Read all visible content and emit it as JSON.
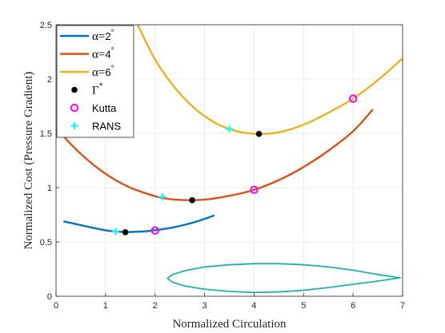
{
  "chart_data": {
    "type": "line",
    "xlabel": "Normalized Circulation",
    "ylabel": "Normalized Cost (Pressure Gradient)",
    "xlim": [
      0,
      7
    ],
    "ylim": [
      0,
      2.5
    ],
    "xticks": [
      "0",
      "1",
      "2",
      "3",
      "4",
      "5",
      "6",
      "7"
    ],
    "yticks": [
      "0",
      "0.5",
      "1",
      "1.5",
      "2",
      "2.5"
    ],
    "grid": true,
    "legend_position": "top-left",
    "series": [
      {
        "name_prefix": "α=",
        "name_value": "2",
        "name_suffix": "°",
        "color": "#0072BD",
        "x": [
          0.15,
          0.4,
          0.7,
          1.0,
          1.2,
          1.4,
          1.6,
          1.8,
          2.0,
          2.3,
          2.6,
          2.9,
          3.2
        ],
        "y": [
          0.69,
          0.665,
          0.635,
          0.607,
          0.597,
          0.592,
          0.593,
          0.598,
          0.608,
          0.628,
          0.658,
          0.697,
          0.745
        ]
      },
      {
        "name_prefix": "α=",
        "name_value": "4",
        "name_suffix": "°",
        "color": "#D95319",
        "x": [
          0.0,
          0.3,
          0.6,
          0.9,
          1.2,
          1.5,
          1.8,
          2.1,
          2.4,
          2.75,
          3.1,
          3.5,
          4.0,
          4.5,
          5.0,
          5.5,
          6.0,
          6.4
        ],
        "y": [
          1.55,
          1.4,
          1.27,
          1.16,
          1.07,
          1.0,
          0.95,
          0.91,
          0.89,
          0.885,
          0.895,
          0.925,
          0.98,
          1.07,
          1.19,
          1.34,
          1.52,
          1.72
        ]
      },
      {
        "name_prefix": "α=",
        "name_value": "6",
        "name_suffix": "°",
        "color": "#EDB120",
        "x": [
          1.65,
          2.0,
          2.4,
          2.8,
          3.2,
          3.5,
          3.8,
          4.1,
          4.5,
          5.0,
          5.5,
          6.0,
          6.5,
          7.0
        ],
        "y": [
          2.5,
          2.18,
          1.92,
          1.73,
          1.6,
          1.54,
          1.505,
          1.495,
          1.51,
          1.58,
          1.69,
          1.82,
          1.99,
          2.19
        ]
      }
    ],
    "markers": {
      "gamma_star": {
        "label_symbol": "Γ",
        "label_sup": "*",
        "color": "#000000",
        "points": [
          [
            1.4,
            0.59
          ],
          [
            2.75,
            0.885
          ],
          [
            4.1,
            1.495
          ]
        ]
      },
      "kutta": {
        "label": "Kutta",
        "color": "#FF00FF",
        "points": [
          [
            2.0,
            0.605
          ],
          [
            4.0,
            0.98
          ],
          [
            6.0,
            1.82
          ]
        ]
      },
      "rans": {
        "label": "RANS",
        "color": "#00FFFF",
        "points": [
          [
            1.2,
            0.597
          ],
          [
            2.15,
            0.915
          ],
          [
            3.5,
            1.54
          ]
        ]
      }
    },
    "airfoil": {
      "color": "#20B2AA",
      "upper_x": [
        6.95,
        6.5,
        6.0,
        5.5,
        5.0,
        4.5,
        4.0,
        3.5,
        3.0,
        2.6,
        2.35,
        2.25
      ],
      "upper_y": [
        0.17,
        0.2,
        0.24,
        0.27,
        0.29,
        0.3,
        0.3,
        0.29,
        0.27,
        0.235,
        0.2,
        0.165
      ],
      "lower_x": [
        2.25,
        2.35,
        2.6,
        3.0,
        3.5,
        4.0,
        4.5,
        5.0,
        5.5,
        6.0,
        6.5,
        6.95
      ],
      "lower_y": [
        0.165,
        0.13,
        0.095,
        0.065,
        0.045,
        0.035,
        0.04,
        0.055,
        0.08,
        0.11,
        0.14,
        0.17
      ]
    }
  }
}
